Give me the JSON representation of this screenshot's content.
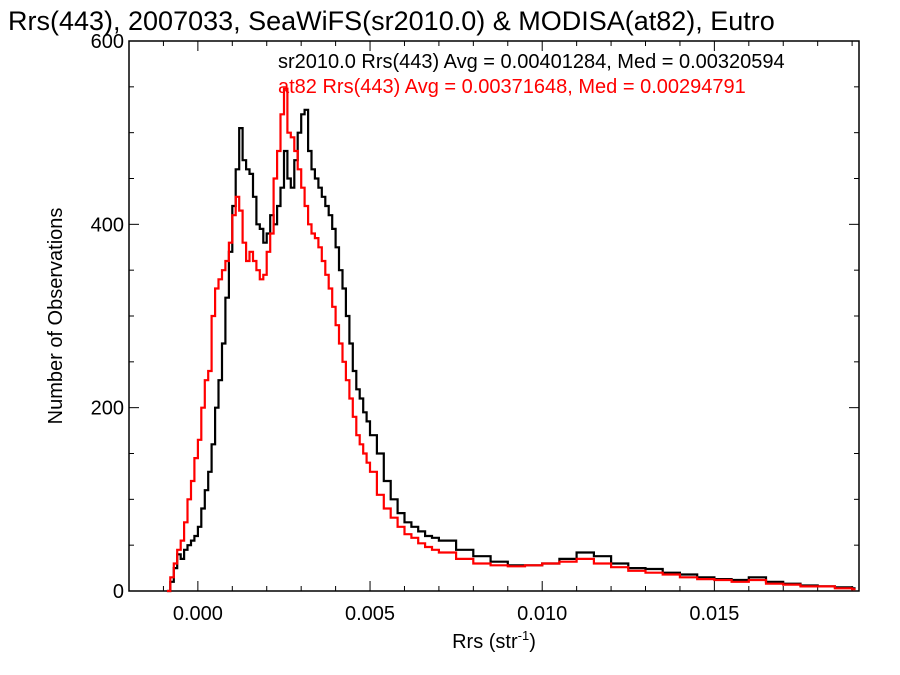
{
  "chart_data": {
    "type": "line",
    "step": true,
    "title": "Rrs(443), 2007033, SeaWiFS(sr2010.0) & MODISA(at82), Eutro",
    "xlabel": "Rrs (str",
    "xlabel_sup": "-1",
    "xlabel_tail": ")",
    "ylabel": "Number of Observations",
    "xlim": [
      -0.002,
      0.0192
    ],
    "ylim": [
      0,
      600
    ],
    "xticks": [
      0.0,
      0.005,
      0.01,
      0.015
    ],
    "xtick_labels": [
      "0.000",
      "0.005",
      "0.010",
      "0.015"
    ],
    "yticks": [
      0,
      200,
      400,
      600
    ],
    "ytick_labels": [
      "0",
      "200",
      "400",
      "600"
    ],
    "legend_position": "top-right",
    "series": [
      {
        "name": "sr2010.0",
        "color": "#000000",
        "legend": "sr2010.0 Rrs(443) Avg = 0.00401284, Med = 0.00320594",
        "points": [
          [
            -0.0009,
            0
          ],
          [
            -0.0008,
            10
          ],
          [
            -0.0007,
            25
          ],
          [
            -0.0006,
            40
          ],
          [
            -0.0005,
            35
          ],
          [
            -0.0004,
            45
          ],
          [
            -0.0003,
            50
          ],
          [
            -0.0002,
            55
          ],
          [
            -0.0001,
            60
          ],
          [
            0.0,
            70
          ],
          [
            0.0001,
            90
          ],
          [
            0.0002,
            110
          ],
          [
            0.0003,
            130
          ],
          [
            0.0004,
            160
          ],
          [
            0.0005,
            200
          ],
          [
            0.0006,
            230
          ],
          [
            0.0007,
            270
          ],
          [
            0.0008,
            320
          ],
          [
            0.0009,
            370
          ],
          [
            0.001,
            420
          ],
          [
            0.0011,
            460
          ],
          [
            0.0012,
            505
          ],
          [
            0.0013,
            470
          ],
          [
            0.0014,
            460
          ],
          [
            0.0015,
            455
          ],
          [
            0.0016,
            430
          ],
          [
            0.0017,
            400
          ],
          [
            0.0018,
            395
          ],
          [
            0.0019,
            380
          ],
          [
            0.002,
            390
          ],
          [
            0.0021,
            410
          ],
          [
            0.0022,
            400
          ],
          [
            0.0023,
            420
          ],
          [
            0.0024,
            440
          ],
          [
            0.0025,
            480
          ],
          [
            0.0026,
            450
          ],
          [
            0.0027,
            440
          ],
          [
            0.0028,
            470
          ],
          [
            0.0029,
            500
          ],
          [
            0.003,
            520
          ],
          [
            0.0031,
            525
          ],
          [
            0.0032,
            480
          ],
          [
            0.0033,
            460
          ],
          [
            0.0034,
            450
          ],
          [
            0.0035,
            440
          ],
          [
            0.0036,
            430
          ],
          [
            0.0037,
            420
          ],
          [
            0.0038,
            410
          ],
          [
            0.0039,
            395
          ],
          [
            0.004,
            375
          ],
          [
            0.0041,
            350
          ],
          [
            0.0042,
            330
          ],
          [
            0.0043,
            300
          ],
          [
            0.0044,
            270
          ],
          [
            0.0045,
            240
          ],
          [
            0.0046,
            220
          ],
          [
            0.0047,
            210
          ],
          [
            0.0048,
            195
          ],
          [
            0.0049,
            185
          ],
          [
            0.005,
            170
          ],
          [
            0.0052,
            150
          ],
          [
            0.0054,
            120
          ],
          [
            0.0056,
            100
          ],
          [
            0.0058,
            85
          ],
          [
            0.006,
            75
          ],
          [
            0.0062,
            70
          ],
          [
            0.0064,
            65
          ],
          [
            0.0066,
            60
          ],
          [
            0.0068,
            58
          ],
          [
            0.007,
            55
          ],
          [
            0.0075,
            45
          ],
          [
            0.008,
            38
          ],
          [
            0.0085,
            32
          ],
          [
            0.009,
            28
          ],
          [
            0.0095,
            28
          ],
          [
            0.01,
            30
          ],
          [
            0.0105,
            35
          ],
          [
            0.011,
            42
          ],
          [
            0.0115,
            38
          ],
          [
            0.012,
            30
          ],
          [
            0.0125,
            25
          ],
          [
            0.013,
            24
          ],
          [
            0.0135,
            20
          ],
          [
            0.014,
            18
          ],
          [
            0.0145,
            15
          ],
          [
            0.015,
            13
          ],
          [
            0.0155,
            12
          ],
          [
            0.016,
            15
          ],
          [
            0.0165,
            10
          ],
          [
            0.017,
            8
          ],
          [
            0.0175,
            6
          ],
          [
            0.018,
            5
          ],
          [
            0.0185,
            4
          ],
          [
            0.019,
            3
          ]
        ]
      },
      {
        "name": "at82",
        "color": "#ff0000",
        "legend": "at82 Rrs(443) Avg = 0.00371648, Med = 0.00294791",
        "points": [
          [
            -0.0009,
            0
          ],
          [
            -0.0008,
            15
          ],
          [
            -0.0007,
            30
          ],
          [
            -0.0006,
            45
          ],
          [
            -0.0005,
            55
          ],
          [
            -0.0004,
            75
          ],
          [
            -0.0003,
            100
          ],
          [
            -0.0002,
            120
          ],
          [
            -0.0001,
            145
          ],
          [
            0.0,
            165
          ],
          [
            0.0001,
            200
          ],
          [
            0.0002,
            230
          ],
          [
            0.0003,
            240
          ],
          [
            0.0004,
            300
          ],
          [
            0.0005,
            330
          ],
          [
            0.0006,
            340
          ],
          [
            0.0007,
            350
          ],
          [
            0.0008,
            360
          ],
          [
            0.0009,
            380
          ],
          [
            0.001,
            410
          ],
          [
            0.0011,
            430
          ],
          [
            0.0012,
            415
          ],
          [
            0.0013,
            380
          ],
          [
            0.0014,
            360
          ],
          [
            0.0015,
            370
          ],
          [
            0.0016,
            360
          ],
          [
            0.0017,
            350
          ],
          [
            0.0018,
            340
          ],
          [
            0.0019,
            345
          ],
          [
            0.002,
            370
          ],
          [
            0.0021,
            390
          ],
          [
            0.0022,
            450
          ],
          [
            0.0023,
            480
          ],
          [
            0.0024,
            520
          ],
          [
            0.0025,
            548
          ],
          [
            0.0026,
            500
          ],
          [
            0.0027,
            495
          ],
          [
            0.0028,
            480
          ],
          [
            0.0029,
            460
          ],
          [
            0.003,
            440
          ],
          [
            0.0031,
            420
          ],
          [
            0.0032,
            400
          ],
          [
            0.0033,
            390
          ],
          [
            0.0034,
            385
          ],
          [
            0.0035,
            375
          ],
          [
            0.0036,
            360
          ],
          [
            0.0037,
            345
          ],
          [
            0.0038,
            330
          ],
          [
            0.0039,
            310
          ],
          [
            0.004,
            290
          ],
          [
            0.0041,
            270
          ],
          [
            0.0042,
            250
          ],
          [
            0.0043,
            230
          ],
          [
            0.0044,
            210
          ],
          [
            0.0045,
            190
          ],
          [
            0.0046,
            170
          ],
          [
            0.0047,
            160
          ],
          [
            0.0048,
            150
          ],
          [
            0.0049,
            140
          ],
          [
            0.005,
            130
          ],
          [
            0.0052,
            105
          ],
          [
            0.0054,
            90
          ],
          [
            0.0056,
            80
          ],
          [
            0.0058,
            70
          ],
          [
            0.006,
            62
          ],
          [
            0.0062,
            58
          ],
          [
            0.0064,
            52
          ],
          [
            0.0066,
            48
          ],
          [
            0.0068,
            45
          ],
          [
            0.007,
            42
          ],
          [
            0.0075,
            35
          ],
          [
            0.008,
            30
          ],
          [
            0.0085,
            28
          ],
          [
            0.009,
            27
          ],
          [
            0.0095,
            28
          ],
          [
            0.01,
            30
          ],
          [
            0.0105,
            32
          ],
          [
            0.011,
            35
          ],
          [
            0.0115,
            30
          ],
          [
            0.012,
            26
          ],
          [
            0.0125,
            22
          ],
          [
            0.013,
            20
          ],
          [
            0.0135,
            18
          ],
          [
            0.014,
            15
          ],
          [
            0.0145,
            13
          ],
          [
            0.015,
            12
          ],
          [
            0.0155,
            10
          ],
          [
            0.016,
            12
          ],
          [
            0.0165,
            8
          ],
          [
            0.017,
            7
          ],
          [
            0.0175,
            5
          ],
          [
            0.018,
            5
          ],
          [
            0.0185,
            3
          ],
          [
            0.019,
            2
          ]
        ]
      }
    ]
  }
}
